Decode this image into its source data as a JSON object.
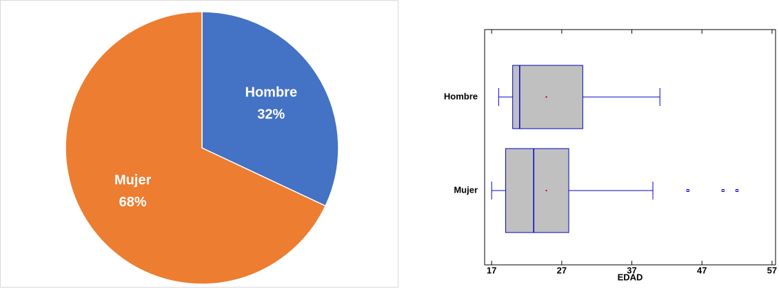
{
  "chart_data": [
    {
      "type": "pie",
      "categories": [
        "Hombre",
        "Mujer"
      ],
      "values": [
        32,
        68
      ],
      "value_labels": [
        "32%",
        "68%"
      ],
      "colors": [
        "#4472c4",
        "#ed7d31"
      ]
    },
    {
      "type": "box",
      "categories": [
        "Hombre",
        "Mujer"
      ],
      "x_label": "EDAD",
      "min": [
        18,
        17
      ],
      "q1": [
        20,
        19
      ],
      "median": [
        21,
        23
      ],
      "q3": [
        30,
        28
      ],
      "max": [
        41,
        40
      ],
      "mean": [
        24.8,
        24.8
      ],
      "outliers": [
        [],
        [
          45,
          50,
          52
        ]
      ],
      "xlim": [
        16,
        57.5
      ],
      "xticks": [
        17,
        27,
        37,
        47,
        57
      ],
      "box_color": "#c0c0c0",
      "line_color": "#0000cc"
    }
  ]
}
